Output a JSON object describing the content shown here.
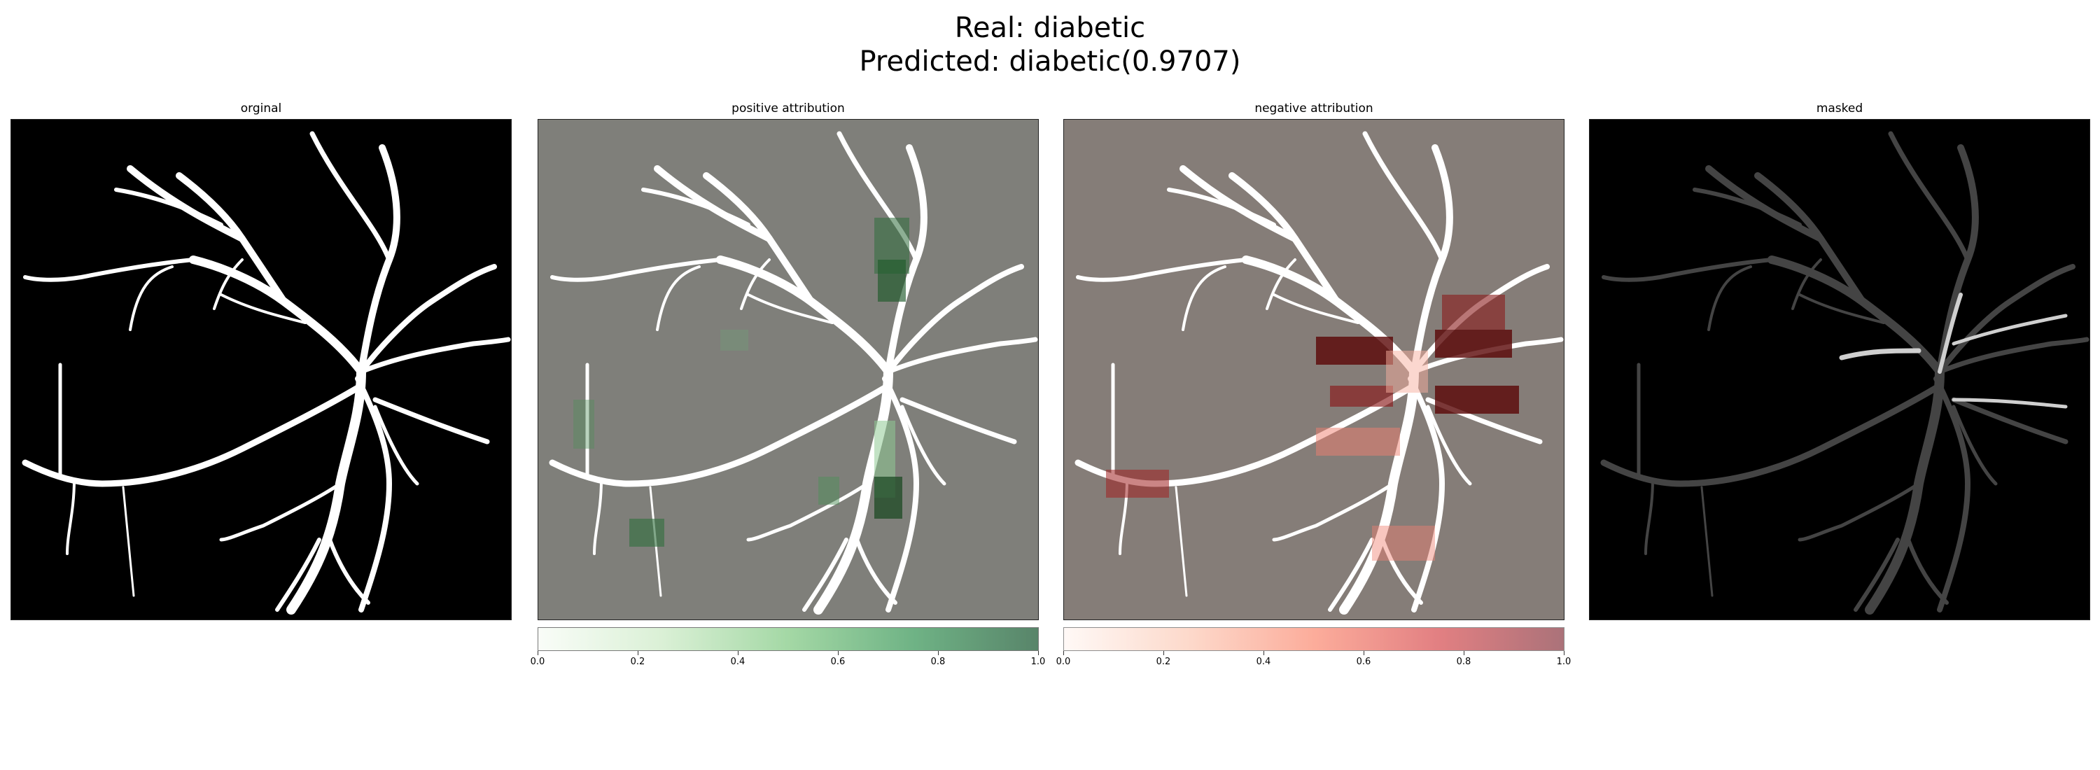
{
  "figure": {
    "title_line1": "Real: diabetic",
    "title_line2": "Predicted: diabetic(0.9707)"
  },
  "panels": [
    {
      "id": "original",
      "title": "orginal"
    },
    {
      "id": "positive",
      "title": "positive attribution"
    },
    {
      "id": "negative",
      "title": "negative attribution"
    },
    {
      "id": "masked",
      "title": "masked"
    }
  ],
  "colorbars": {
    "positive": {
      "colormap": "Greens",
      "range": [
        0.0,
        1.0
      ],
      "ticks": [
        "0.0",
        "0.2",
        "0.4",
        "0.6",
        "0.8",
        "1.0"
      ]
    },
    "negative": {
      "colormap": "Reds",
      "range": [
        0.0,
        1.0
      ],
      "ticks": [
        "0.0",
        "0.2",
        "0.4",
        "0.6",
        "0.8",
        "1.0"
      ]
    }
  },
  "colors": {
    "background": "#000000",
    "vessel": "#ffffff",
    "positive_overlay": "#7f7f7a",
    "negative_overlay": "#857d78",
    "green_high": "#1c5a2a",
    "red_high": "#5a0606"
  }
}
